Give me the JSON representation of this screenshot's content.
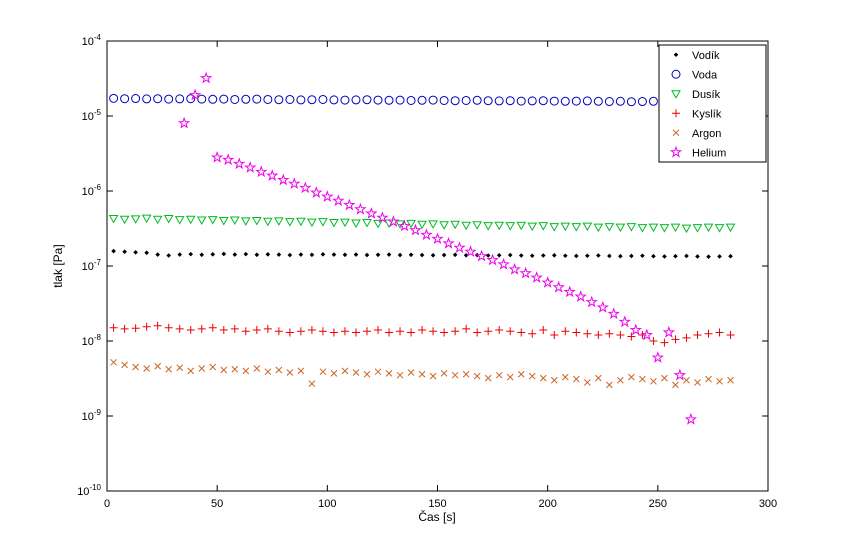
{
  "chart_data": {
    "type": "scatter",
    "title": "",
    "xlabel": "Čas [s]",
    "ylabel": "tlak [Pa]",
    "xlim": [
      0,
      300
    ],
    "y_scale": "log",
    "ylim_exponents": [
      -10,
      -4
    ],
    "x_ticks": [
      0,
      50,
      100,
      150,
      200,
      250,
      300
    ],
    "y_tick_exponents": [
      -10,
      -9,
      -8,
      -7,
      -6,
      -5,
      -4
    ],
    "grid": false,
    "legend_position": "northeast",
    "x_shared": [
      3,
      8,
      13,
      18,
      23,
      28,
      33,
      38,
      43,
      48,
      53,
      58,
      63,
      68,
      73,
      78,
      83,
      88,
      93,
      98,
      103,
      108,
      113,
      118,
      123,
      128,
      133,
      138,
      143,
      148,
      153,
      158,
      163,
      168,
      173,
      178,
      183,
      188,
      193,
      198,
      203,
      208,
      213,
      218,
      223,
      228,
      233,
      238,
      243,
      248,
      253,
      258,
      263,
      268,
      273,
      278,
      283
    ],
    "series": [
      {
        "name": "Vodík",
        "marker": "point",
        "color": "#000000",
        "y": [
          1.58e-07,
          1.55e-07,
          1.52e-07,
          1.5e-07,
          1.42e-07,
          1.38e-07,
          1.42e-07,
          1.44e-07,
          1.41e-07,
          1.43e-07,
          1.45e-07,
          1.42e-07,
          1.44e-07,
          1.41e-07,
          1.43e-07,
          1.42e-07,
          1.4e-07,
          1.42e-07,
          1.41e-07,
          1.43e-07,
          1.42e-07,
          1.41e-07,
          1.42e-07,
          1.4e-07,
          1.41e-07,
          1.42e-07,
          1.4e-07,
          1.41e-07,
          1.4e-07,
          1.39e-07,
          1.4e-07,
          1.41e-07,
          1.39e-07,
          1.4e-07,
          1.38e-07,
          1.39e-07,
          1.4e-07,
          1.38e-07,
          1.37e-07,
          1.38e-07,
          1.39e-07,
          1.37e-07,
          1.36e-07,
          1.37e-07,
          1.38e-07,
          1.36e-07,
          1.35e-07,
          1.36e-07,
          1.37e-07,
          1.35e-07,
          1.34e-07,
          1.35e-07,
          1.36e-07,
          1.34e-07,
          1.33e-07,
          1.34e-07,
          1.35e-07
        ]
      },
      {
        "name": "Voda",
        "marker": "circle",
        "color": "#0000bb",
        "y": [
          1.72e-05,
          1.7e-05,
          1.71e-05,
          1.69e-05,
          1.7e-05,
          1.68e-05,
          1.69e-05,
          1.7e-05,
          1.68e-05,
          1.67e-05,
          1.68e-05,
          1.66e-05,
          1.67e-05,
          1.68e-05,
          1.66e-05,
          1.65e-05,
          1.66e-05,
          1.64e-05,
          1.65e-05,
          1.66e-05,
          1.64e-05,
          1.63e-05,
          1.64e-05,
          1.65e-05,
          1.63e-05,
          1.62e-05,
          1.63e-05,
          1.61e-05,
          1.62e-05,
          1.63e-05,
          1.61e-05,
          1.6e-05,
          1.61e-05,
          1.62e-05,
          1.6e-05,
          1.59e-05,
          1.6e-05,
          1.58e-05,
          1.59e-05,
          1.6e-05,
          1.58e-05,
          1.57e-05,
          1.58e-05,
          1.59e-05,
          1.57e-05,
          1.56e-05,
          1.57e-05,
          1.55e-05,
          1.56e-05,
          1.57e-05,
          1.55e-05,
          1.54e-05,
          1.55e-05,
          1.56e-05,
          1.54e-05,
          1.53e-05,
          1.54e-05
        ]
      },
      {
        "name": "Dusík",
        "marker": "triangle-down",
        "color": "#00bb22",
        "y": [
          4.3e-07,
          4.2e-07,
          4.25e-07,
          4.35e-07,
          4.2e-07,
          4.3e-07,
          4.15e-07,
          4.2e-07,
          4.1e-07,
          4.15e-07,
          4.05e-07,
          4.1e-07,
          4e-07,
          4.05e-07,
          3.95e-07,
          4e-07,
          3.9e-07,
          3.95e-07,
          3.85e-07,
          3.9e-07,
          3.8e-07,
          3.85e-07,
          3.75e-07,
          3.8e-07,
          3.7e-07,
          3.75e-07,
          3.65e-07,
          3.7e-07,
          3.6e-07,
          3.65e-07,
          3.55e-07,
          3.6e-07,
          3.5e-07,
          3.55e-07,
          3.45e-07,
          3.5e-07,
          3.45e-07,
          3.5e-07,
          3.4e-07,
          3.45e-07,
          3.35e-07,
          3.4e-07,
          3.35e-07,
          3.4e-07,
          3.3e-07,
          3.35e-07,
          3.3e-07,
          3.35e-07,
          3.25e-07,
          3.3e-07,
          3.25e-07,
          3.3e-07,
          3.2e-07,
          3.25e-07,
          3.3e-07,
          3.25e-07,
          3.3e-07
        ]
      },
      {
        "name": "Kyslík",
        "marker": "plus",
        "color": "#ee0000",
        "y": [
          1.5e-08,
          1.45e-08,
          1.48e-08,
          1.55e-08,
          1.6e-08,
          1.5e-08,
          1.45e-08,
          1.4e-08,
          1.45e-08,
          1.5e-08,
          1.4e-08,
          1.45e-08,
          1.35e-08,
          1.4e-08,
          1.45e-08,
          1.35e-08,
          1.3e-08,
          1.35e-08,
          1.4e-08,
          1.35e-08,
          1.3e-08,
          1.35e-08,
          1.3e-08,
          1.35e-08,
          1.4e-08,
          1.3e-08,
          1.35e-08,
          1.3e-08,
          1.4e-08,
          1.35e-08,
          1.3e-08,
          1.35e-08,
          1.45e-08,
          1.3e-08,
          1.35e-08,
          1.4e-08,
          1.35e-08,
          1.3e-08,
          1.25e-08,
          1.4e-08,
          1.2e-08,
          1.35e-08,
          1.3e-08,
          1.25e-08,
          1.2e-08,
          1.25e-08,
          1.2e-08,
          1.15e-08,
          1.2e-08,
          1e-08,
          9.5e-09,
          1.05e-08,
          1.1e-08,
          1.2e-08,
          1.25e-08,
          1.3e-08,
          1.2e-08
        ]
      },
      {
        "name": "Argon",
        "marker": "x",
        "color": "#cc6622",
        "y": [
          5.2e-09,
          4.8e-09,
          4.5e-09,
          4.3e-09,
          4.6e-09,
          4.2e-09,
          4.4e-09,
          4e-09,
          4.3e-09,
          4.5e-09,
          4.1e-09,
          4.2e-09,
          4e-09,
          4.3e-09,
          3.9e-09,
          4.1e-09,
          3.8e-09,
          4e-09,
          2.7e-09,
          3.9e-09,
          3.7e-09,
          4e-09,
          3.8e-09,
          3.6e-09,
          3.9e-09,
          3.7e-09,
          3.5e-09,
          3.8e-09,
          3.6e-09,
          3.4e-09,
          3.7e-09,
          3.5e-09,
          3.6e-09,
          3.4e-09,
          3.2e-09,
          3.5e-09,
          3.3e-09,
          3.6e-09,
          3.4e-09,
          3.2e-09,
          3e-09,
          3.3e-09,
          3.1e-09,
          2.8e-09,
          3.2e-09,
          2.6e-09,
          3e-09,
          3.3e-09,
          3.1e-09,
          2.9e-09,
          3.2e-09,
          2.6e-09,
          3e-09,
          2.8e-09,
          3.1e-09,
          2.9e-09,
          3e-09
        ]
      },
      {
        "name": "Helium",
        "marker": "pentagram",
        "color": "#ee00ee",
        "x": [
          35,
          40,
          45,
          50,
          55,
          60,
          65,
          70,
          75,
          80,
          85,
          90,
          95,
          100,
          105,
          110,
          115,
          120,
          125,
          130,
          135,
          140,
          145,
          150,
          155,
          160,
          165,
          170,
          175,
          180,
          185,
          190,
          195,
          200,
          205,
          210,
          215,
          220,
          225,
          230,
          235,
          240,
          245,
          250,
          255,
          260,
          265
        ],
        "y": [
          8e-06,
          1.9e-05,
          3.2e-05,
          2.8e-06,
          2.6e-06,
          2.3e-06,
          2.05e-06,
          1.8e-06,
          1.6e-06,
          1.4e-06,
          1.25e-06,
          1.1e-06,
          9.5e-07,
          8.4e-07,
          7.4e-07,
          6.5e-07,
          5.7e-07,
          5e-07,
          4.4e-07,
          3.9e-07,
          3.4e-07,
          3e-07,
          2.6e-07,
          2.3e-07,
          2e-07,
          1.75e-07,
          1.55e-07,
          1.35e-07,
          1.2e-07,
          1.05e-07,
          9e-08,
          8e-08,
          7e-08,
          6e-08,
          5.2e-08,
          4.5e-08,
          3.9e-08,
          3.3e-08,
          2.8e-08,
          2.3e-08,
          1.8e-08,
          1.4e-08,
          1.2e-08,
          6e-09,
          1.3e-08,
          3.5e-09,
          9e-10
        ]
      }
    ]
  },
  "colors": {
    "axis": "#000000",
    "background": "#ffffff"
  }
}
